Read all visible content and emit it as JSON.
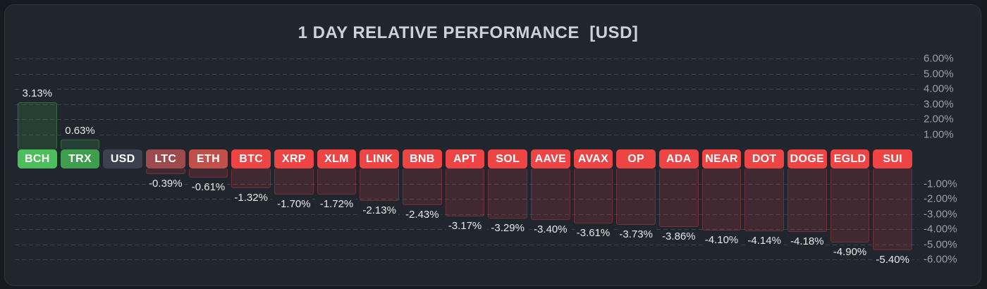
{
  "title": "1 DAY RELATIVE PERFORMANCE  [USD]",
  "colors": {
    "page_background": "#171a21",
    "panel_background": "#21252e",
    "panel_border": "#2d323d",
    "title_text": "#cdd2da",
    "axis_text": "#99a0ac",
    "value_text": "#e7e9ee",
    "gridline": "#3b404b",
    "positive_bar_fill": "rgba(77,190,92,0.16)",
    "negative_bar_fill": "rgba(239,68,68,0.15)",
    "chip_positive_strong": "#4dbe5c",
    "chip_positive_soft": "#3e9e4e",
    "chip_neutral": "#3b4150",
    "chip_negative_soft": "#9d4a4c",
    "chip_negative_medium": "#c1504b",
    "chip_negative_strong": "#ef4444"
  },
  "chart_data": {
    "type": "bar",
    "subtype": "relative-performance-waterfall",
    "title": "1 DAY RELATIVE PERFORMANCE  [USD]",
    "unit": "%",
    "ylim": [
      -6,
      6
    ],
    "grid": "dashed-horizontal",
    "legend_position": "none",
    "baseline_category": "USD",
    "categories": [
      "BCH",
      "TRX",
      "USD",
      "LTC",
      "ETH",
      "BTC",
      "XRP",
      "XLM",
      "LINK",
      "BNB",
      "APT",
      "SOL",
      "AAVE",
      "AVAX",
      "OP",
      "ADA",
      "NEAR",
      "DOT",
      "DOGE",
      "EGLD",
      "SUI"
    ],
    "values": [
      3.13,
      0.63,
      0,
      -0.39,
      -0.61,
      -1.32,
      -1.7,
      -1.72,
      -2.13,
      -2.43,
      -3.17,
      -3.29,
      -3.4,
      -3.61,
      -3.73,
      -3.86,
      -4.1,
      -4.14,
      -4.18,
      -4.9,
      -5.4
    ],
    "series": [
      {
        "ticker": "BCH",
        "value": 3.13,
        "display": "3.13%",
        "chip_color": "#4dbe5c"
      },
      {
        "ticker": "TRX",
        "value": 0.63,
        "display": "0.63%",
        "chip_color": "#3e9e4e"
      },
      {
        "ticker": "USD",
        "value": 0,
        "display": "",
        "chip_color": "#3b4150"
      },
      {
        "ticker": "LTC",
        "value": -0.39,
        "display": "-0.39%",
        "chip_color": "#9d4a4c"
      },
      {
        "ticker": "ETH",
        "value": -0.61,
        "display": "-0.61%",
        "chip_color": "#c1504b"
      },
      {
        "ticker": "BTC",
        "value": -1.32,
        "display": "-1.32%",
        "chip_color": "#ef4444"
      },
      {
        "ticker": "XRP",
        "value": -1.7,
        "display": "-1.70%",
        "chip_color": "#ef4444"
      },
      {
        "ticker": "XLM",
        "value": -1.72,
        "display": "-1.72%",
        "chip_color": "#ef4444"
      },
      {
        "ticker": "LINK",
        "value": -2.13,
        "display": "-2.13%",
        "chip_color": "#ef4444"
      },
      {
        "ticker": "BNB",
        "value": -2.43,
        "display": "-2.43%",
        "chip_color": "#ef4444"
      },
      {
        "ticker": "APT",
        "value": -3.17,
        "display": "-3.17%",
        "chip_color": "#ef4444"
      },
      {
        "ticker": "SOL",
        "value": -3.29,
        "display": "-3.29%",
        "chip_color": "#ef4444"
      },
      {
        "ticker": "AAVE",
        "value": -3.4,
        "display": "-3.40%",
        "chip_color": "#ef4444"
      },
      {
        "ticker": "AVAX",
        "value": -3.61,
        "display": "-3.61%",
        "chip_color": "#ef4444"
      },
      {
        "ticker": "OP",
        "value": -3.73,
        "display": "-3.73%",
        "chip_color": "#ef4444"
      },
      {
        "ticker": "ADA",
        "value": -3.86,
        "display": "-3.86%",
        "chip_color": "#ef4444"
      },
      {
        "ticker": "NEAR",
        "value": -4.1,
        "display": "-4.10%",
        "chip_color": "#ef4444"
      },
      {
        "ticker": "DOT",
        "value": -4.14,
        "display": "-4.14%",
        "chip_color": "#ef4444"
      },
      {
        "ticker": "DOGE",
        "value": -4.18,
        "display": "-4.18%",
        "chip_color": "#ef4444"
      },
      {
        "ticker": "EGLD",
        "value": -4.9,
        "display": "-4.90%",
        "chip_color": "#ef4444"
      },
      {
        "ticker": "SUI",
        "value": -5.4,
        "display": "-5.40%",
        "chip_color": "#ef4444"
      }
    ],
    "y_axis": {
      "side": "right",
      "ticks_positive": [
        "6.00%",
        "5.00%",
        "4.00%",
        "3.00%",
        "2.00%",
        "1.00%"
      ],
      "ticks_negative": [
        "-1.00%",
        "-2.00%",
        "-3.00%",
        "-4.00%",
        "-5.00%",
        "-6.00%"
      ]
    }
  }
}
